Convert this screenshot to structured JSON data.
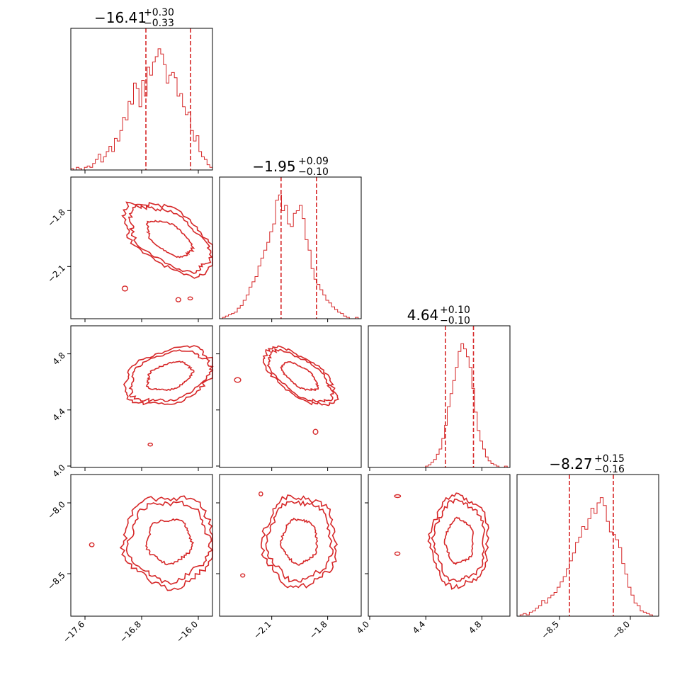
{
  "chart_data": {
    "type": "corner",
    "color": "#d62728",
    "parameters": [
      {
        "median": -16.41,
        "plus": 0.3,
        "minus": 0.33,
        "range": [
          -17.8,
          -15.8
        ]
      },
      {
        "median": -1.95,
        "plus": 0.09,
        "minus": 0.1,
        "range": [
          -2.38,
          -1.62
        ]
      },
      {
        "median": 4.64,
        "plus": 0.1,
        "minus": 0.1,
        "range": [
          3.99,
          5.0
        ]
      },
      {
        "median": -8.27,
        "plus": 0.15,
        "minus": 0.16,
        "range": [
          -8.8,
          -7.8
        ]
      }
    ],
    "titles": [
      {
        "value": "−16.41",
        "sup": "+0.30",
        "sub": "−0.33"
      },
      {
        "value": "−1.95",
        "sup": "+0.09",
        "sub": "−0.10"
      },
      {
        "value": "4.64",
        "sup": "+0.10",
        "sub": "−0.10"
      },
      {
        "value": "−8.27",
        "sup": "+0.15",
        "sub": "−0.16"
      }
    ],
    "quantile_lines": [
      [
        -16.74,
        -16.11
      ],
      [
        -2.05,
        -1.86
      ],
      [
        4.54,
        4.74
      ],
      [
        -8.43,
        -8.12
      ]
    ],
    "ticks": [
      {
        "values": [
          -17.6,
          -16.8,
          -16.0
        ],
        "labels": [
          "−17.6",
          "−16.8",
          "−16.0"
        ]
      },
      {
        "values": [
          -2.1,
          -1.8
        ],
        "labels": [
          "−2.1",
          "−1.8"
        ]
      },
      {
        "values": [
          4.0,
          4.4,
          4.8
        ],
        "labels": [
          "4.0",
          "4.4",
          "4.8"
        ]
      },
      {
        "values": [
          -8.5,
          -8.0
        ],
        "labels": [
          "−8.5",
          "−8.0"
        ]
      }
    ],
    "histograms": [
      [
        0.01,
        0.0,
        0.02,
        0.01,
        0.0,
        0.02,
        0.03,
        0.02,
        0.05,
        0.08,
        0.12,
        0.06,
        0.1,
        0.14,
        0.18,
        0.14,
        0.24,
        0.22,
        0.3,
        0.4,
        0.38,
        0.52,
        0.5,
        0.66,
        0.62,
        0.48,
        0.68,
        0.56,
        0.78,
        0.72,
        0.82,
        0.86,
        0.92,
        0.88,
        0.8,
        0.66,
        0.72,
        0.74,
        0.7,
        0.56,
        0.58,
        0.48,
        0.42,
        0.44,
        0.3,
        0.22,
        0.26,
        0.14,
        0.1,
        0.08,
        0.04,
        0.02
      ],
      [
        0.0,
        0.01,
        0.02,
        0.03,
        0.04,
        0.05,
        0.08,
        0.1,
        0.14,
        0.18,
        0.24,
        0.28,
        0.32,
        0.4,
        0.46,
        0.52,
        0.58,
        0.66,
        0.72,
        0.9,
        0.94,
        0.82,
        0.86,
        0.72,
        0.7,
        0.8,
        0.82,
        0.86,
        0.76,
        0.6,
        0.52,
        0.38,
        0.3,
        0.26,
        0.22,
        0.18,
        0.14,
        0.12,
        0.09,
        0.07,
        0.05,
        0.04,
        0.02,
        0.01,
        0.0,
        0.0,
        0.01,
        0.0
      ],
      [
        0.0,
        0.0,
        0.0,
        0.0,
        0.0,
        0.0,
        0.0,
        0.0,
        0.0,
        0.0,
        0.0,
        0.0,
        0.0,
        0.0,
        0.0,
        0.0,
        0.0,
        0.0,
        0.0,
        0.0,
        0.0,
        0.01,
        0.02,
        0.04,
        0.06,
        0.1,
        0.14,
        0.22,
        0.32,
        0.46,
        0.56,
        0.66,
        0.76,
        0.88,
        0.94,
        0.9,
        0.84,
        0.76,
        0.6,
        0.42,
        0.28,
        0.2,
        0.14,
        0.08,
        0.05,
        0.03,
        0.02,
        0.01,
        0.0,
        0.0,
        0.01,
        0.0
      ],
      [
        0.0,
        0.01,
        0.02,
        0.01,
        0.03,
        0.04,
        0.06,
        0.08,
        0.12,
        0.1,
        0.14,
        0.16,
        0.18,
        0.22,
        0.26,
        0.3,
        0.36,
        0.42,
        0.48,
        0.56,
        0.6,
        0.68,
        0.66,
        0.74,
        0.82,
        0.78,
        0.86,
        0.9,
        0.84,
        0.72,
        0.64,
        0.62,
        0.58,
        0.52,
        0.4,
        0.32,
        0.22,
        0.16,
        0.1,
        0.08,
        0.04,
        0.03,
        0.02,
        0.01,
        0.0,
        0.0
      ]
    ]
  }
}
